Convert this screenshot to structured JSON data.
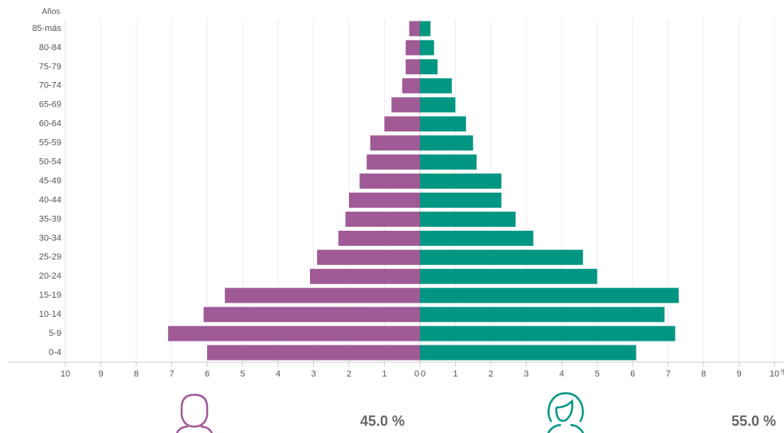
{
  "chart_data": {
    "type": "pyramid",
    "ylabel": "Años",
    "xlabel": "%",
    "categories": [
      "85-más",
      "80-84",
      "75-79",
      "70-74",
      "65-69",
      "60-64",
      "55-59",
      "50-54",
      "45-49",
      "40-44",
      "35-39",
      "30-34",
      "25-29",
      "20-24",
      "15-19",
      "10-14",
      "5-9",
      "0-4"
    ],
    "series": [
      {
        "color": "#a05a96",
        "values": [
          0.3,
          0.4,
          0.4,
          0.5,
          0.8,
          1.0,
          1.4,
          1.5,
          1.7,
          2.0,
          2.1,
          2.3,
          2.9,
          3.1,
          5.5,
          6.1,
          7.1,
          6.0
        ]
      },
      {
        "color": "#009682",
        "values": [
          0.3,
          0.4,
          0.5,
          0.9,
          1.0,
          1.3,
          1.5,
          1.6,
          2.3,
          2.3,
          2.7,
          3.2,
          4.6,
          5.0,
          7.3,
          6.9,
          7.2,
          6.1
        ]
      }
    ],
    "xlim": [
      0,
      10
    ],
    "xticks": [
      0,
      1,
      2,
      3,
      4,
      5,
      6,
      7,
      8,
      9,
      10
    ],
    "grid": true,
    "totals": {
      "values": [
        45.0,
        55.0
      ],
      "value_labels": [
        "45.0 %",
        "55.0 %"
      ]
    }
  }
}
